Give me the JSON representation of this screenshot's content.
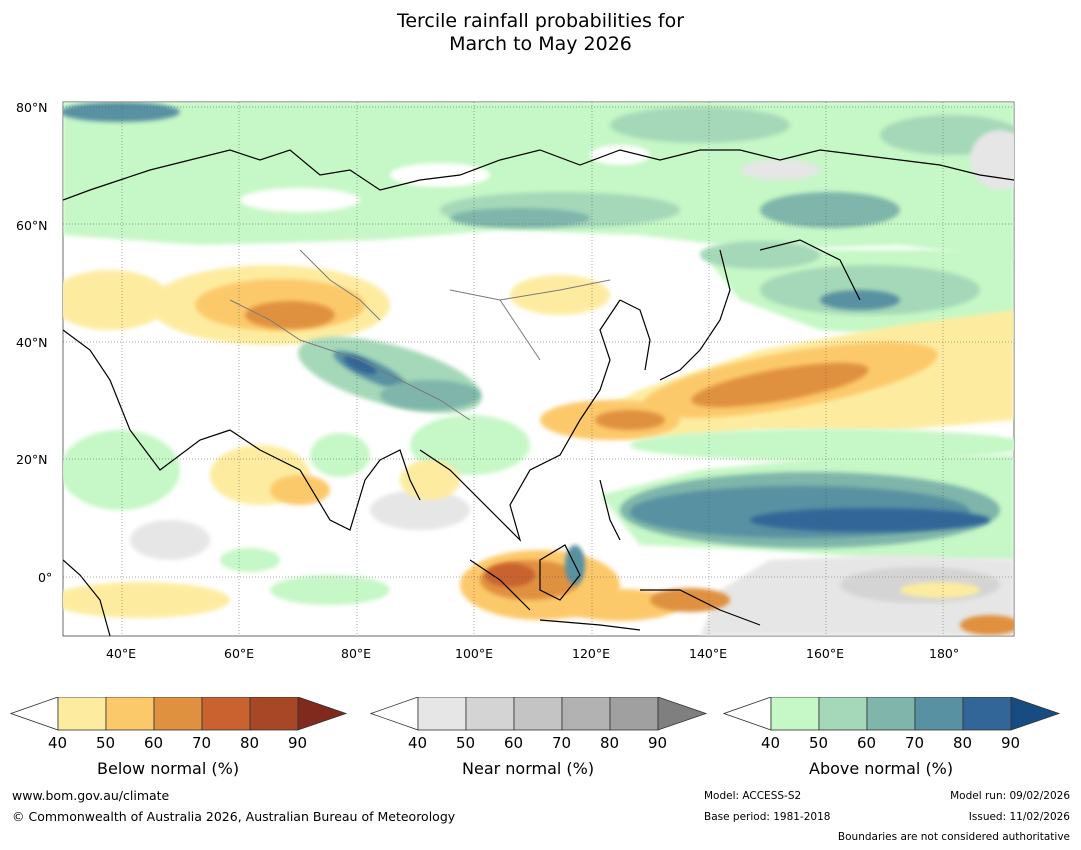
{
  "title": {
    "line1": "Tercile rainfall probabilities for",
    "line2": "March to May 2026"
  },
  "map": {
    "lat_labels": [
      "80°N",
      "60°N",
      "40°N",
      "20°N",
      "0°"
    ],
    "lon_labels": [
      "40°E",
      "60°E",
      "80°E",
      "100°E",
      "120°E",
      "140°E",
      "160°E",
      "180°"
    ],
    "region": "Asia",
    "extent": {
      "lon": [
        30,
        192
      ],
      "lat": [
        -10,
        81
      ]
    }
  },
  "legend": {
    "below": {
      "label": "Below normal (%)",
      "ticks": [
        "40",
        "50",
        "60",
        "70",
        "80",
        "90"
      ],
      "colors": [
        "#ffffff",
        "#fdeca0",
        "#fcc96a",
        "#e0913f",
        "#c9622f",
        "#a84726",
        "#7f2a1c"
      ]
    },
    "near": {
      "label": "Near normal (%)",
      "ticks": [
        "40",
        "50",
        "60",
        "70",
        "80",
        "90"
      ],
      "colors": [
        "#ffffff",
        "#e6e6e6",
        "#d4d4d4",
        "#c4c4c4",
        "#b2b2b2",
        "#a0a0a0",
        "#7f7f7f"
      ]
    },
    "above": {
      "label": "Above normal (%)",
      "ticks": [
        "40",
        "50",
        "60",
        "70",
        "80",
        "90"
      ],
      "colors": [
        "#ffffff",
        "#c6f7c6",
        "#a5d8b8",
        "#7fb5aa",
        "#5891a2",
        "#326698",
        "#164c80"
      ]
    }
  },
  "footer": {
    "website": "www.bom.gov.au/climate",
    "copyright": "© Commonwealth of Australia 2026, Australian Bureau of Meteorology",
    "model": "Model: ACCESS-S2",
    "base_period": "Base period: 1981-2018",
    "model_run": "Model run: 09/02/2026",
    "issued": "Issued: 11/02/2026",
    "disclaimer": "Boundaries are not considered authoritative"
  }
}
